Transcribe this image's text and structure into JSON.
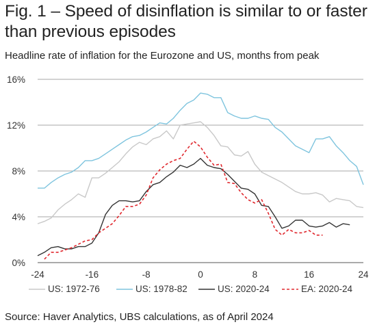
{
  "header": {
    "title": "Fig. 1 – Speed of disinflation is similar to or faster than previous episodes",
    "subtitle": "Headline rate of inflation for the Eurozone and US, months from peak"
  },
  "footer": {
    "source": "Source: Haver Analytics, UBS calculations, as of April 2024"
  },
  "chart_data": {
    "type": "line",
    "title": "Fig. 1 – Speed of disinflation is similar to or faster than previous episodes",
    "subtitle": "Headline rate of inflation for the Eurozone and US, months from peak",
    "xlabel": "",
    "ylabel": "",
    "xlim": [
      -24,
      24
    ],
    "ylim": [
      0,
      16
    ],
    "x_ticks": [
      -24,
      -16,
      -8,
      0,
      8,
      16,
      24
    ],
    "y_ticks": [
      0,
      4,
      8,
      12,
      16
    ],
    "y_tick_labels": [
      "0%",
      "4%",
      "8%",
      "12%",
      "16%"
    ],
    "grid": "horizontal",
    "legend_position": "bottom",
    "series": [
      {
        "name": "US: 1972-76",
        "color": "#c8c8c8",
        "dash": "solid",
        "x": [
          -24,
          -23,
          -22,
          -21,
          -20,
          -19,
          -18,
          -17,
          -16,
          -15,
          -14,
          -13,
          -12,
          -11,
          -10,
          -9,
          -8,
          -7,
          -6,
          -5,
          -4,
          -3,
          -2,
          -1,
          0,
          1,
          2,
          3,
          4,
          5,
          6,
          7,
          8,
          9,
          10,
          11,
          12,
          13,
          14,
          15,
          16,
          17,
          18,
          19,
          20,
          21,
          22,
          23,
          24
        ],
        "y": [
          3.4,
          3.6,
          3.9,
          4.6,
          5.1,
          5.5,
          6.0,
          5.7,
          7.4,
          7.4,
          7.8,
          8.3,
          8.8,
          9.5,
          10.1,
          10.5,
          10.3,
          10.8,
          11.0,
          11.5,
          10.8,
          12.0,
          12.1,
          12.2,
          12.3,
          11.8,
          11.1,
          10.2,
          10.1,
          9.4,
          9.3,
          9.7,
          8.6,
          7.9,
          7.6,
          7.3,
          7.0,
          6.6,
          6.2,
          6.0,
          6.0,
          6.1,
          5.9,
          5.3,
          5.6,
          5.5,
          5.4,
          4.9,
          4.8
        ]
      },
      {
        "name": "US: 1978-82",
        "color": "#7ec4de",
        "dash": "solid",
        "x": [
          -24,
          -23,
          -22,
          -21,
          -20,
          -19,
          -18,
          -17,
          -16,
          -15,
          -14,
          -13,
          -12,
          -11,
          -10,
          -9,
          -8,
          -7,
          -6,
          -5,
          -4,
          -3,
          -2,
          -1,
          0,
          1,
          2,
          3,
          4,
          5,
          6,
          7,
          8,
          9,
          10,
          11,
          12,
          13,
          14,
          15,
          16,
          17,
          18,
          19,
          20,
          21,
          22,
          23,
          24
        ],
        "y": [
          6.5,
          6.5,
          7.0,
          7.4,
          7.7,
          7.9,
          8.3,
          8.9,
          8.9,
          9.1,
          9.5,
          9.9,
          10.3,
          10.7,
          11.0,
          11.1,
          11.4,
          11.8,
          12.2,
          12.1,
          12.6,
          13.3,
          13.9,
          14.2,
          14.8,
          14.7,
          14.4,
          14.4,
          13.1,
          12.8,
          12.6,
          12.6,
          12.8,
          12.6,
          12.5,
          11.8,
          11.4,
          10.8,
          10.2,
          9.9,
          9.6,
          10.8,
          10.8,
          11.0,
          10.2,
          9.6,
          8.9,
          8.4,
          6.8
        ]
      },
      {
        "name": "US: 2020-24",
        "color": "#333333",
        "dash": "solid",
        "x": [
          -24,
          -23,
          -22,
          -21,
          -20,
          -19,
          -18,
          -17,
          -16,
          -15,
          -14,
          -13,
          -12,
          -11,
          -10,
          -9,
          -8,
          -7,
          -6,
          -5,
          -4,
          -3,
          -2,
          -1,
          0,
          1,
          2,
          3,
          4,
          5,
          6,
          7,
          8,
          9,
          10,
          11,
          12,
          13,
          14,
          15,
          16,
          17,
          18,
          19,
          20,
          21,
          22
        ],
        "y": [
          0.6,
          0.9,
          1.3,
          1.4,
          1.2,
          1.2,
          1.4,
          1.4,
          1.7,
          2.6,
          4.2,
          5.0,
          5.4,
          5.4,
          5.3,
          5.4,
          6.2,
          6.8,
          7.0,
          7.5,
          7.9,
          8.5,
          8.3,
          8.6,
          9.1,
          8.5,
          8.3,
          8.2,
          7.7,
          7.1,
          6.5,
          6.4,
          6.0,
          5.0,
          4.9,
          4.0,
          3.0,
          3.2,
          3.7,
          3.7,
          3.2,
          3.1,
          3.2,
          3.5,
          3.1,
          3.4,
          3.3
        ]
      },
      {
        "name": "EA: 2020-24",
        "color": "#e0282e",
        "dash": "dashed",
        "x": [
          -23,
          -22,
          -21,
          -20,
          -19,
          -18,
          -17,
          -16,
          -15,
          -14,
          -13,
          -12,
          -11,
          -10,
          -9,
          -8,
          -7,
          -6,
          -5,
          -4,
          -3,
          -2,
          -1,
          0,
          1,
          2,
          3,
          4,
          5,
          6,
          7,
          8,
          9,
          10,
          11,
          12,
          13,
          14,
          15,
          16,
          17,
          18
        ],
        "y": [
          0.3,
          0.9,
          0.9,
          1.1,
          1.3,
          1.6,
          1.9,
          2.0,
          2.6,
          3.0,
          3.4,
          4.1,
          4.9,
          4.9,
          5.1,
          5.9,
          7.4,
          8.1,
          8.6,
          8.9,
          9.1,
          9.9,
          10.6,
          10.1,
          9.2,
          8.5,
          8.6,
          7.0,
          6.9,
          6.1,
          5.5,
          5.2,
          5.5,
          4.3,
          2.9,
          2.4,
          2.9,
          2.6,
          2.6,
          2.8,
          2.4,
          2.4
        ]
      }
    ]
  }
}
